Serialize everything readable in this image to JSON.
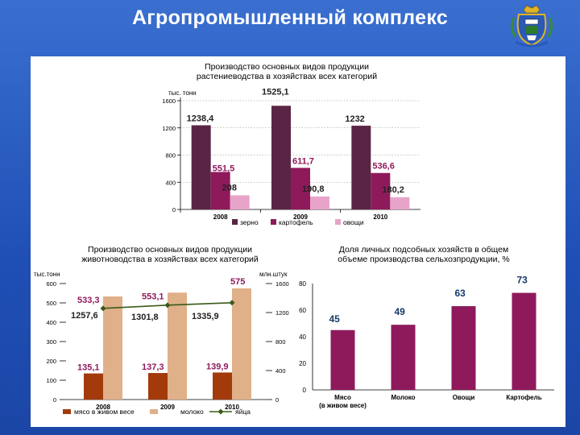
{
  "header": {
    "title": "Агропромышленный комплекс"
  },
  "colors": {
    "bg": "#2251b8",
    "maroon": "#5a2545",
    "purple": "#8e1a5c",
    "pink": "#e7a4c8",
    "brown": "#a33a0c",
    "tan": "#e0b089",
    "line": "#3a5a1a"
  },
  "chart_data": [
    {
      "type": "bar",
      "title": "Производство основных видов продукции растениеводства в хозяйствах всех категорий",
      "unit": "тыс. тонн",
      "categories": [
        "2008",
        "2009",
        "2010"
      ],
      "yticks": [
        "0",
        "400",
        "800",
        "1200",
        "1600"
      ],
      "ylim": [
        0,
        1600
      ],
      "series": [
        {
          "name": "зерно",
          "values": [
            1238.4,
            1525.1,
            1232
          ],
          "labels": [
            "1238,4",
            "1525,1",
            "1232"
          ],
          "color": "#5a2545"
        },
        {
          "name": "картофель",
          "values": [
            551.5,
            611.7,
            536.6
          ],
          "labels": [
            "551,5",
            "611,7",
            "536,6"
          ],
          "color": "#8e1a5c"
        },
        {
          "name": "овощи",
          "values": [
            208,
            190.8,
            180.2
          ],
          "labels": [
            "208",
            "190,8",
            "180,2"
          ],
          "color": "#e7a4c8"
        }
      ],
      "legend": "bottom"
    },
    {
      "type": "bar+line",
      "title": "Производство основных видов продукции животноводства в хозяйствах всех категорий",
      "unit_left": "тыс.тонн",
      "unit_right": "млн.штук",
      "categories": [
        "2008",
        "2009",
        "2010"
      ],
      "yticks_left": [
        "0",
        "100",
        "200",
        "300",
        "400",
        "500",
        "600"
      ],
      "yticks_right": [
        "0",
        "400",
        "800",
        "1200",
        "1600"
      ],
      "ylim_left": [
        0,
        600
      ],
      "ylim_right": [
        0,
        1600
      ],
      "series": [
        {
          "name": "мясо в живом весе",
          "values": [
            135.1,
            137.3,
            139.9
          ],
          "labels": [
            "135,1",
            "137,3",
            "139,9"
          ],
          "color": "#a33a0c",
          "axis": "left"
        },
        {
          "name": "молоко",
          "values": [
            533.3,
            553.1,
            575
          ],
          "labels": [
            "533,3",
            "553,1",
            "575"
          ],
          "color": "#e0b089",
          "axis": "left"
        },
        {
          "name": "яйца",
          "values": [
            1257.6,
            1301.8,
            1335.9
          ],
          "labels": [
            "1257,6",
            "1301,8",
            "1335,9"
          ],
          "color": "#3a5a1a",
          "axis": "right",
          "style": "line"
        }
      ],
      "legend": "bottom"
    },
    {
      "type": "bar",
      "title": "Доля личных подсобных хозяйств в общем объеме производства сельхозпродукции, %",
      "categories": [
        "Мясо\n(в живом весе)",
        "Молоко",
        "Овощи",
        "Картофель"
      ],
      "category_lines": [
        [
          "Мясо",
          "(в живом весе)"
        ],
        [
          "Молоко"
        ],
        [
          "Овощи"
        ],
        [
          "Картофель"
        ]
      ],
      "yticks": [
        "0",
        "20",
        "40",
        "60",
        "80"
      ],
      "ylim": [
        0,
        80
      ],
      "values": [
        45,
        49,
        63,
        73
      ],
      "labels": [
        "45",
        "49",
        "63",
        "73"
      ],
      "color": "#8e1a5c"
    }
  ]
}
